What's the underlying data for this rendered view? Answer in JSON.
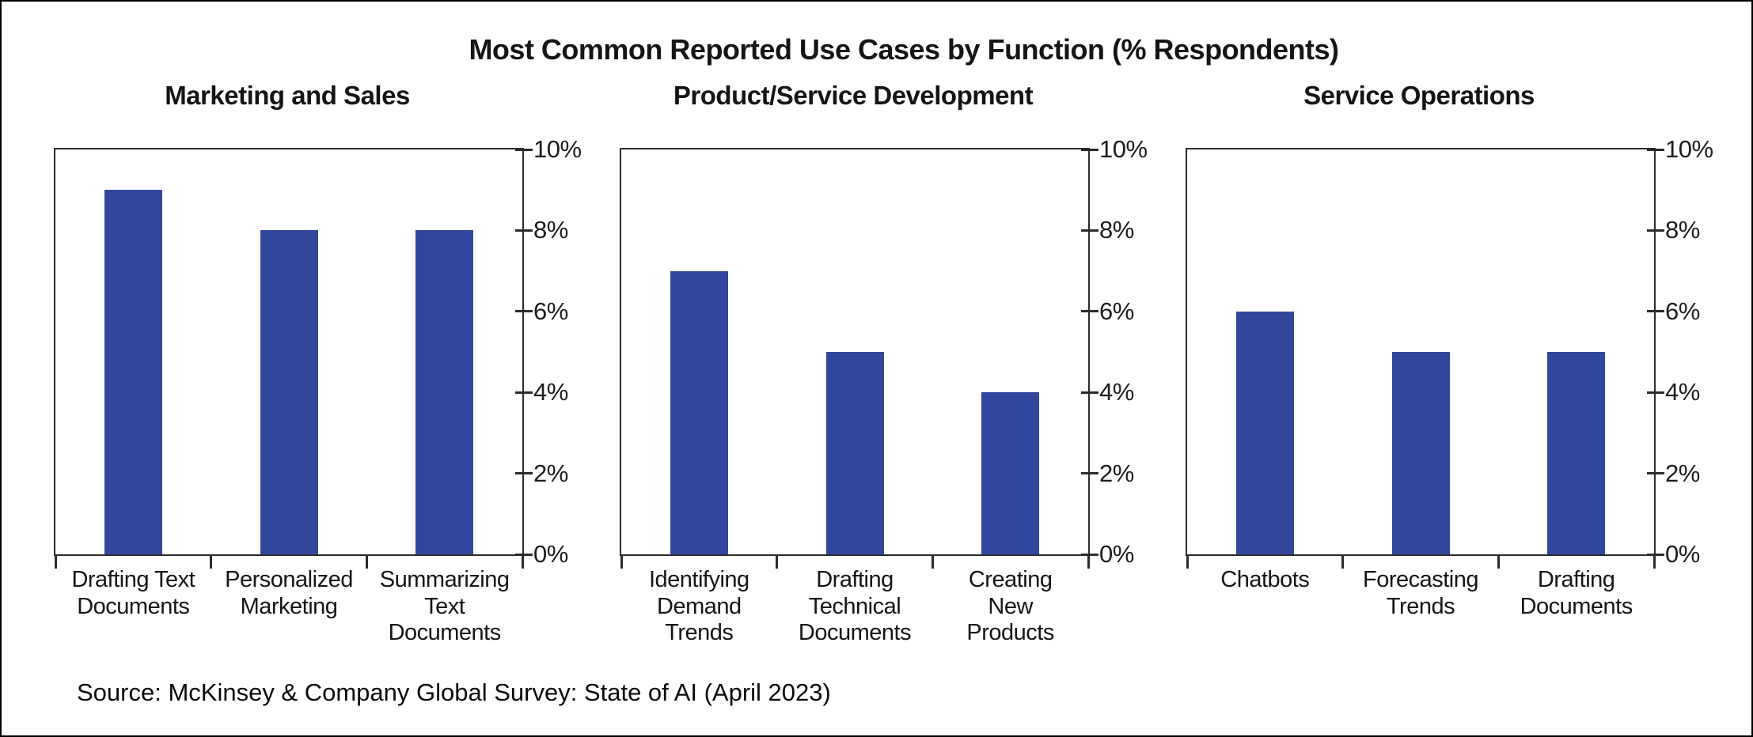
{
  "title": "Most Common Reported Use Cases by Function (% Respondents)",
  "source": "Source: McKinsey & Company Global Survey: State of AI (April 2023)",
  "colors": {
    "bar": "#31479D",
    "axis": "#2B2B2B",
    "text": "#151515"
  },
  "y_axis": {
    "min": 0,
    "max": 10,
    "tick_step": 2,
    "tick_labels": [
      "0%",
      "2%",
      "4%",
      "6%",
      "8%",
      "10%"
    ]
  },
  "chart_data": [
    {
      "type": "bar",
      "title": "Marketing and Sales",
      "categories": [
        "Drafting Text\nDocuments",
        "Personalized\nMarketing",
        "Summarizing\nText\nDocuments"
      ],
      "values": [
        9,
        8,
        8
      ],
      "ylim": [
        0,
        10
      ],
      "ylabel": "% Respondents",
      "grid": false,
      "legend": "none"
    },
    {
      "type": "bar",
      "title": "Product/Service Development",
      "categories": [
        "Identifying\nDemand\nTrends",
        "Drafting\nTechnical\nDocuments",
        "Creating\nNew\nProducts"
      ],
      "values": [
        7,
        5,
        4
      ],
      "ylim": [
        0,
        10
      ],
      "ylabel": "% Respondents",
      "grid": false,
      "legend": "none"
    },
    {
      "type": "bar",
      "title": "Service Operations",
      "categories": [
        "Chatbots",
        "Forecasting\nTrends",
        "Drafting\nDocuments"
      ],
      "values": [
        6,
        5,
        5
      ],
      "ylim": [
        0,
        10
      ],
      "ylabel": "% Respondents",
      "grid": false,
      "legend": "none"
    }
  ]
}
